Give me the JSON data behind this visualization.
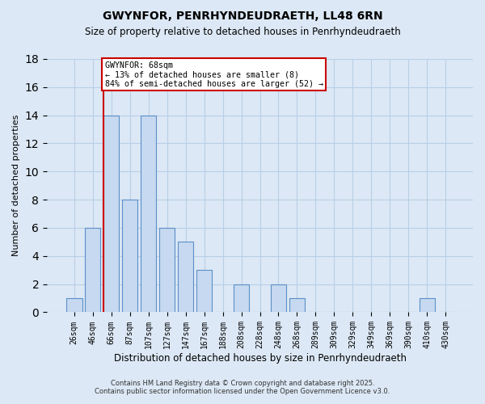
{
  "title": "GWYNFOR, PENRHYNDEUDRAETH, LL48 6RN",
  "subtitle": "Size of property relative to detached houses in Penrhyndeudraeth",
  "xlabel": "Distribution of detached houses by size in Penrhyndeudraeth",
  "ylabel": "Number of detached properties",
  "bar_labels": [
    "26sqm",
    "46sqm",
    "66sqm",
    "87sqm",
    "107sqm",
    "127sqm",
    "147sqm",
    "167sqm",
    "188sqm",
    "208sqm",
    "228sqm",
    "248sqm",
    "268sqm",
    "289sqm",
    "309sqm",
    "329sqm",
    "349sqm",
    "369sqm",
    "390sqm",
    "410sqm",
    "430sqm"
  ],
  "bar_values": [
    1,
    6,
    14,
    8,
    14,
    6,
    5,
    3,
    0,
    2,
    0,
    2,
    1,
    0,
    0,
    0,
    0,
    0,
    0,
    1,
    0
  ],
  "bar_color": "#c6d9f0",
  "bar_edge_color": "#5b8fc8",
  "vline_index": 2,
  "annotation_text_line1": "GWYNFOR: 68sqm",
  "annotation_text_line2": "← 13% of detached houses are smaller (8)",
  "annotation_text_line3": "84% of semi-detached houses are larger (52) →",
  "annotation_box_color": "#ffffff",
  "annotation_box_edge": "#cc0000",
  "vline_color": "#cc0000",
  "ylim": [
    0,
    18
  ],
  "yticks": [
    0,
    2,
    4,
    6,
    8,
    10,
    12,
    14,
    16,
    18
  ],
  "grid_color": "#b8cfe8",
  "bg_color": "#dce8f5",
  "footer_line1": "Contains HM Land Registry data © Crown copyright and database right 2025.",
  "footer_line2": "Contains public sector information licensed under the Open Government Licence v3.0."
}
